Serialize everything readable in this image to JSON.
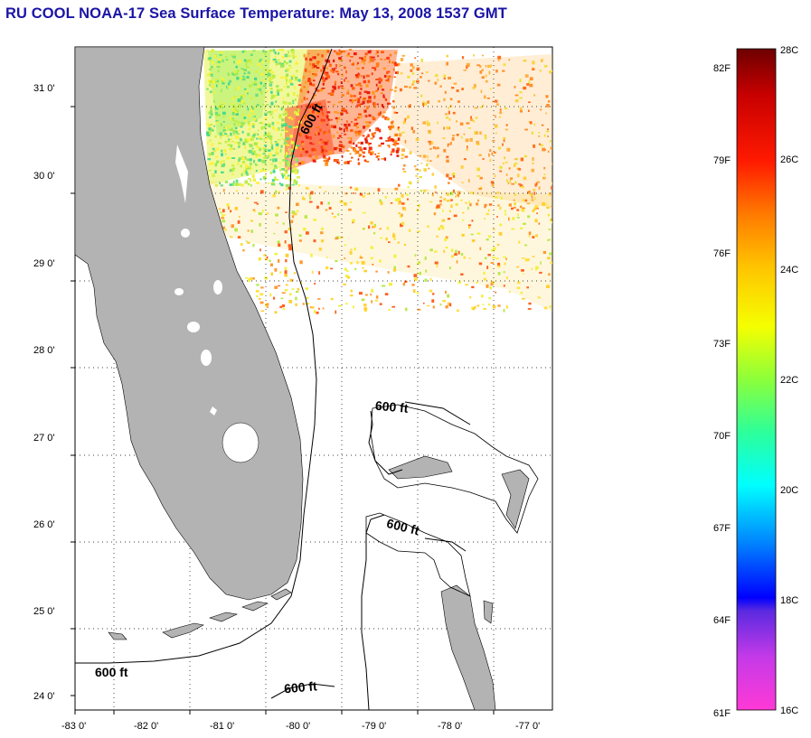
{
  "title": "RU COOL  NOAA-17  Sea Surface Temperature:  May 13, 2008 1537 GMT",
  "map": {
    "lon_range": [
      -83,
      -76.85
    ],
    "lat_range": [
      23.8,
      31.45
    ],
    "x_ticks": [
      "-83 0'",
      "-82 0'",
      "-81 0'",
      "-80 0'",
      "-79 0'",
      "-78 0'",
      "-77 0'"
    ],
    "y_ticks": [
      "31 0'",
      "30 0'",
      "29 0'",
      "28 0'",
      "27 0'",
      "26 0'",
      "25 0'",
      "24 0'"
    ],
    "grid": "dotted",
    "land_color": "#b3b3b3",
    "contour_labels": [
      "600 ft",
      "600 ft",
      "600 ft",
      "600 ft",
      "600 ft"
    ]
  },
  "colorbar": {
    "fahrenheit_labels": [
      "82F",
      "79F",
      "76F",
      "73F",
      "70F",
      "67F",
      "64F",
      "61F"
    ],
    "celsius_labels": [
      "28C",
      "26C",
      "24C",
      "22C",
      "20C",
      "18C",
      "16C"
    ],
    "range_c": [
      16,
      28
    ]
  }
}
